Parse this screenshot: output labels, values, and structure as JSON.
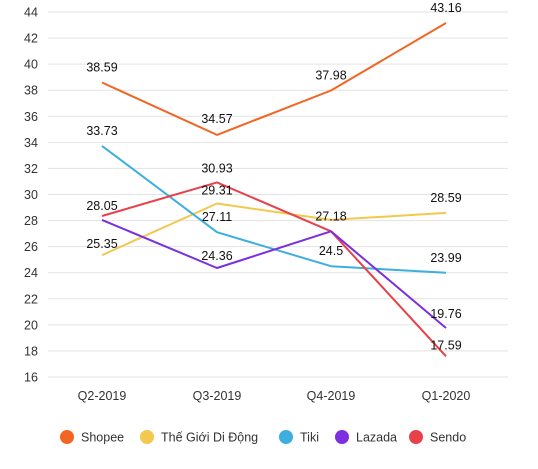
{
  "chart_data": {
    "type": "line",
    "categories": [
      "Q2-2019",
      "Q3-2019",
      "Q4-2019",
      "Q1-2020"
    ],
    "ylim": [
      16,
      44
    ],
    "yticks": [
      16,
      18,
      20,
      22,
      24,
      26,
      28,
      30,
      32,
      34,
      36,
      38,
      40,
      42,
      44
    ],
    "grid": true,
    "legend_position": "bottom",
    "series": [
      {
        "name": "Shopee",
        "color": "#F26522",
        "values": [
          38.59,
          34.57,
          37.98,
          43.16
        ],
        "labels": [
          "38.59",
          "34.57",
          "37.98",
          "43.16"
        ]
      },
      {
        "name": "Thế Giới Di Động",
        "color": "#F2C94C",
        "values": [
          25.35,
          29.31,
          28.05,
          28.59
        ],
        "labels": [
          "25.35",
          "29.31",
          "",
          "28.59"
        ]
      },
      {
        "name": "Tiki",
        "color": "#3DAEE0",
        "values": [
          33.73,
          27.11,
          24.5,
          23.99
        ],
        "labels": [
          "33.73",
          "27.11",
          "24.5",
          "23.99"
        ]
      },
      {
        "name": "Lazada",
        "color": "#7B2FE0",
        "values": [
          28.05,
          24.36,
          27.18,
          19.76
        ],
        "labels": [
          "28.05",
          "24.36",
          "27.18",
          "19.76"
        ]
      },
      {
        "name": "Sendo",
        "color": "#E8414A",
        "values": [
          28.35,
          30.93,
          27.18,
          17.59
        ],
        "labels": [
          "",
          "30.93",
          "",
          "17.59"
        ]
      }
    ]
  }
}
